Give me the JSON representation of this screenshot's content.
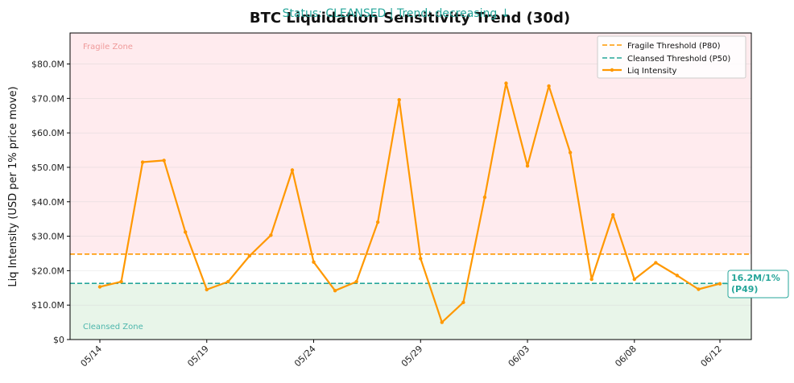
{
  "chart_data": {
    "type": "line",
    "title": "BTC Liquidation Sensitivity Trend (30d)",
    "status_text": "Status: CLEANSED | Trend: decreasing ↓",
    "ylabel": "Liq Intensity (USD per 1% price move)",
    "xlabel": "",
    "ylim": [
      0,
      89
    ],
    "yticks": [
      0,
      10,
      20,
      30,
      40,
      50,
      60,
      70,
      80
    ],
    "ytick_labels": [
      "$0",
      "$10.0M",
      "$20.0M",
      "$30.0M",
      "$40.0M",
      "$50.0M",
      "$60.0M",
      "$70.0M",
      "$80.0M"
    ],
    "xticks": [
      "05/14",
      "05/19",
      "05/24",
      "05/29",
      "06/03",
      "06/08",
      "06/12"
    ],
    "xtick_index": [
      0,
      5,
      10,
      15,
      20,
      25,
      29
    ],
    "x": [
      "05/14",
      "05/15",
      "05/16",
      "05/17",
      "05/18",
      "05/19",
      "05/20",
      "05/21",
      "05/22",
      "05/23",
      "05/24",
      "05/25",
      "05/26",
      "05/27",
      "05/28",
      "05/29",
      "05/30",
      "05/31",
      "06/01",
      "06/02",
      "06/03",
      "06/04",
      "06/05",
      "06/06",
      "06/07",
      "06/08",
      "06/09",
      "06/10",
      "06/11",
      "06/12"
    ],
    "series": [
      {
        "name": "Liq Intensity",
        "color": "#ff9800",
        "values": [
          15.3,
          16.8,
          51.5,
          52.0,
          31.2,
          14.5,
          16.8,
          24.3,
          30.3,
          49.2,
          22.5,
          14.2,
          16.8,
          34.1,
          69.6,
          23.5,
          5.0,
          10.8,
          41.3,
          74.4,
          50.4,
          73.6,
          54.3,
          17.5,
          36.2,
          17.5,
          22.3,
          18.6,
          14.6,
          16.2
        ]
      }
    ],
    "thresholds": [
      {
        "name": "Fragile Threshold (P80)",
        "value": 24.8,
        "color": "#ff9800"
      },
      {
        "name": "Cleansed Threshold (P50)",
        "value": 16.3,
        "color": "#26a69a"
      }
    ],
    "zones": {
      "fragile_label": "Fragile Zone",
      "cleansed_label": "Cleansed Zone",
      "fragile_color": "#ffebee",
      "cleansed_color": "#e8f5e9"
    },
    "annotation": {
      "line1": "16.2M/1%",
      "line2": "(P49)"
    },
    "legend_position": "top-right",
    "grid": true
  }
}
